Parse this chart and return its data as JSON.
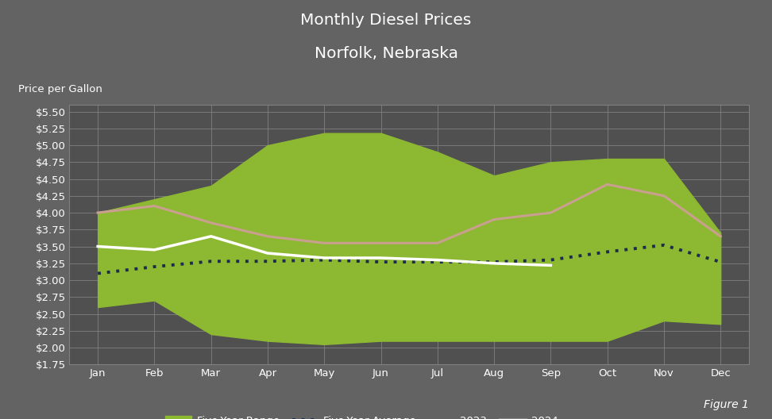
{
  "title_line1": "Monthly Diesel Prices",
  "title_line2": "Norfolk, Nebraska",
  "ylabel": "Price per Gallon",
  "figure1_label": "Figure 1",
  "background_color": "#636363",
  "plot_bg_color": "#505050",
  "grid_color": "#808080",
  "months": [
    "Jan",
    "Feb",
    "Mar",
    "Apr",
    "May",
    "Jun",
    "Jul",
    "Aug",
    "Sep",
    "Oct",
    "Nov",
    "Dec"
  ],
  "ylim": [
    1.75,
    5.6
  ],
  "yticks": [
    1.75,
    2.0,
    2.25,
    2.5,
    2.75,
    3.0,
    3.25,
    3.5,
    3.75,
    4.0,
    4.25,
    4.5,
    4.75,
    5.0,
    5.25,
    5.5
  ],
  "ytick_labels": [
    "$1.75",
    "$2.00",
    "$2.25",
    "$2.50",
    "$2.75",
    "$3.00",
    "$3.25",
    "$3.50",
    "$3.75",
    "$4.00",
    "$4.25",
    "$4.50",
    "$4.75",
    "$5.00",
    "$5.25",
    "$5.50"
  ],
  "five_year_low": [
    2.6,
    2.7,
    2.2,
    2.1,
    2.05,
    2.1,
    2.1,
    2.1,
    2.1,
    2.1,
    2.4,
    2.35
  ],
  "five_year_high": [
    4.0,
    4.2,
    4.4,
    5.0,
    5.18,
    5.18,
    4.9,
    4.55,
    4.75,
    4.8,
    4.8,
    3.7
  ],
  "five_year_avg": [
    3.1,
    3.2,
    3.28,
    3.28,
    3.3,
    3.27,
    3.27,
    3.27,
    3.3,
    3.42,
    3.52,
    3.27
  ],
  "prices_2023": [
    4.0,
    4.1,
    3.85,
    3.65,
    3.55,
    3.55,
    3.55,
    3.9,
    4.0,
    4.42,
    4.25,
    3.65
  ],
  "prices_2024": [
    3.5,
    3.45,
    3.65,
    3.4,
    3.33,
    3.33,
    3.3,
    3.25,
    3.22,
    null,
    null,
    null
  ],
  "five_year_range_color": "#8db832",
  "five_year_avg_color": "#1a2e4a",
  "prices_2023_color": "#c9a090",
  "prices_2024_color": "#ffffff",
  "title_color": "#ffffff",
  "tick_label_color": "#ffffff",
  "axis_label_color": "#ffffff",
  "legend_text_color": "#ffffff",
  "figsize": [
    9.72,
    5.28
  ],
  "dpi": 100
}
